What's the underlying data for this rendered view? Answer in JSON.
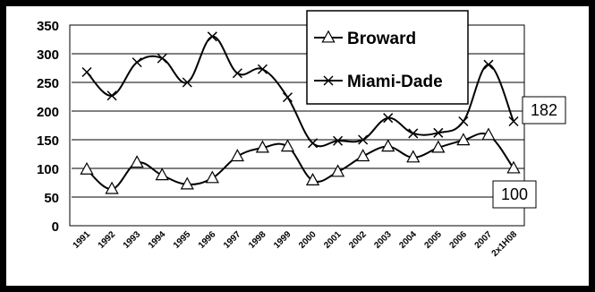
{
  "chart_data": {
    "type": "line",
    "title": "",
    "xlabel": "",
    "ylabel": "",
    "categories": [
      "1991",
      "1992",
      "1993",
      "1994",
      "1995",
      "1996",
      "1997",
      "1998",
      "1999",
      "2000",
      "2001",
      "2002",
      "2003",
      "2004",
      "2005",
      "2006",
      "2007",
      "2x1H08"
    ],
    "ylim": [
      0,
      350
    ],
    "yticks": [
      0,
      50,
      100,
      150,
      200,
      250,
      300,
      350
    ],
    "grid": true,
    "legend_position": "top-right",
    "series": [
      {
        "name": "Broward",
        "marker": "triangle-open",
        "values": [
          98,
          64,
          110,
          88,
          72,
          83,
          121,
          136,
          138,
          79,
          94,
          121,
          138,
          119,
          136,
          149,
          158,
          100
        ]
      },
      {
        "name": "Miami-Dade",
        "marker": "x",
        "values": [
          268,
          227,
          285,
          292,
          250,
          330,
          266,
          273,
          224,
          144,
          148,
          150,
          188,
          161,
          162,
          182,
          281,
          182
        ]
      }
    ],
    "annotations": [
      {
        "text": "182",
        "series": "Miami-Dade",
        "category": "2x1H08"
      },
      {
        "text": "100",
        "series": "Broward",
        "category": "2x1H08"
      }
    ],
    "colors": {
      "background": "#000000",
      "plot_area": "#ffffff",
      "line": "#000000",
      "axis_text": "#000000"
    }
  }
}
